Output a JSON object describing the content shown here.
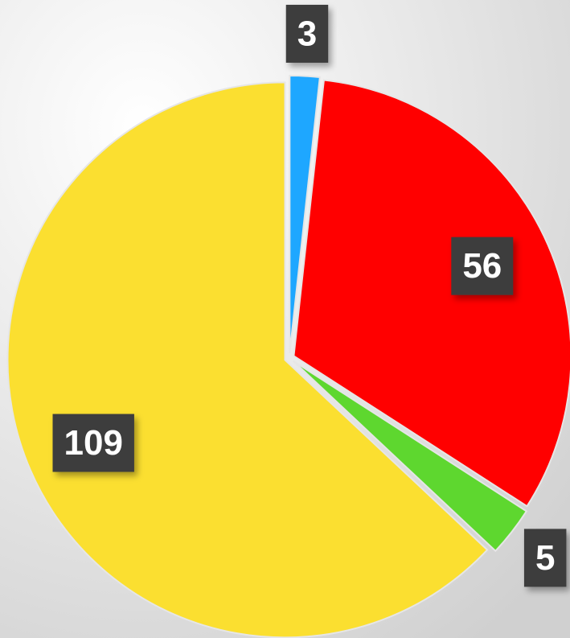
{
  "chart_data": {
    "type": "pie",
    "categories": [
      null,
      null,
      null,
      null
    ],
    "values": [
      3,
      56,
      5,
      109
    ],
    "colors": [
      "#1ea7ff",
      "#ff0000",
      "#5ed72f",
      "#fbdf30"
    ],
    "start_angle": 0,
    "direction": "clockwise"
  }
}
